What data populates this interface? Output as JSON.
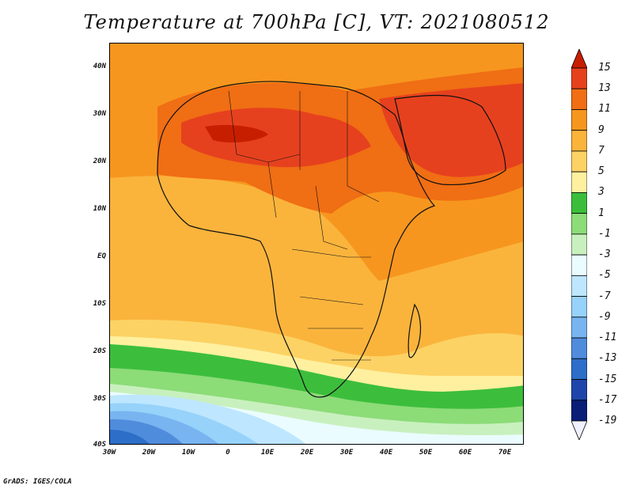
{
  "title": "Temperature at 700hPa [C], VT: 2021080512",
  "credit": "GrADS: IGES/COLA",
  "lat_labels": [
    "40N",
    "30N",
    "20N",
    "10N",
    "EQ",
    "10S",
    "20S",
    "30S",
    "40S"
  ],
  "lon_labels": [
    "30W",
    "20W",
    "10W",
    "0",
    "10E",
    "20E",
    "30E",
    "40E",
    "50E",
    "60E",
    "70E"
  ],
  "colorbar": {
    "levels": [
      "15",
      "13",
      "11",
      "9",
      "7",
      "5",
      "3",
      "1",
      "-1",
      "-3",
      "-5",
      "-7",
      "-9",
      "-11",
      "-13",
      "-15",
      "-17",
      "-19"
    ],
    "colors": [
      "#c81e00",
      "#e6411e",
      "#f06e14",
      "#f7961e",
      "#fab43c",
      "#fcd264",
      "#fff0a0",
      "#3cbe3c",
      "#8cdc78",
      "#c8f0be",
      "#eafcff",
      "#bee6ff",
      "#96d2fa",
      "#78b4f0",
      "#508cdc",
      "#2d6ec8",
      "#1e46aa",
      "#0a1e78",
      "#f0f0ff"
    ]
  },
  "map": {
    "projection": "cylindrical",
    "lon_range": [
      -30,
      75
    ],
    "lat_range": [
      -40,
      45
    ]
  }
}
